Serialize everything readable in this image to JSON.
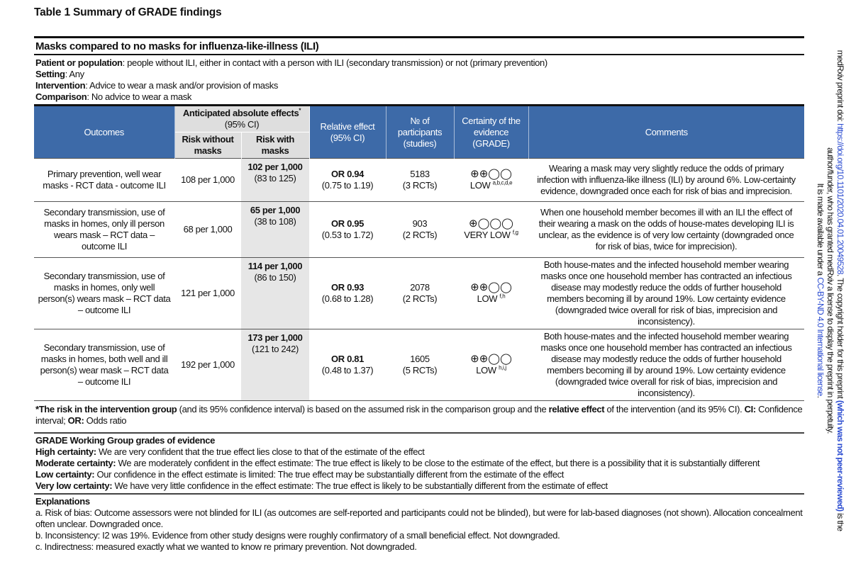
{
  "title": "Table 1 Summary of GRADE findings",
  "subtitle": "Masks compared to no masks for influenza-like-illness (ILI)",
  "meta": [
    {
      "label": "Patient or population",
      "text": ": people without ILI, either in contact with a person with ILI (secondary transmission) or not (primary prevention)"
    },
    {
      "label": "Setting",
      "text": ": Any"
    },
    {
      "label": "Intervention",
      "text": ": Advice to wear a mask and/or provision of masks"
    },
    {
      "label": "Comparison",
      "text": ": No advice to wear a mask"
    }
  ],
  "header": {
    "outcomes": "Outcomes",
    "anticipated": "Anticipated absolute effects",
    "anticipated_mark": "*",
    "anticipated_ci": "(95% CI)",
    "risk_without": "Risk without masks",
    "risk_with": "Risk with masks",
    "relative": "Relative effect (95% CI)",
    "participants": "№ of participants (studies)",
    "certainty": "Certainty of the evidence (GRADE)",
    "comments": "Comments"
  },
  "rows": [
    {
      "outcome": "Primary prevention, well wear masks - RCT data - outcome ILI",
      "risk_without": "108 per 1,000",
      "risk_with": "102 per 1,000",
      "risk_with_ci": "(83 to 125)",
      "or": "OR 0.94",
      "or_ci": "(0.75 to 1.19)",
      "n": "5183",
      "studies": "(3 RCTs)",
      "symbols": "⊕⊕◯◯",
      "grade": "LOW",
      "notes": "a,b,c,d,e",
      "comment": "Wearing a mask may very slightly reduce the odds of primary infection with influenza-like illness (ILI) by around 6%. Low-certainty evidence, downgraded once each for risk of bias and imprecision."
    },
    {
      "outcome": "Secondary transmission, use of masks in homes, only ill person wears mask – RCT data – outcome ILI",
      "risk_without": "68 per 1,000",
      "risk_with": "65 per 1,000",
      "risk_with_ci": "(38 to 108)",
      "or": "OR 0.95",
      "or_ci": "(0.53 to 1.72)",
      "n": "903",
      "studies": "(2 RCTs)",
      "symbols": "⊕◯◯◯",
      "grade": "VERY LOW",
      "notes": "f,g",
      "comment": "When one household member becomes ill with an ILI the effect of their wearing a mask on the odds of house-mates developing ILI is unclear, as the evidence is of very low certainty (downgraded once for risk of bias, twice for imprecision)."
    },
    {
      "outcome": "Secondary transmission, use of masks in homes, only well person(s) wears mask – RCT data – outcome ILI",
      "risk_without": "121 per 1,000",
      "risk_with": "114 per 1,000",
      "risk_with_ci": "(86 to 150)",
      "or": "OR 0.93",
      "or_ci": "(0.68 to 1.28)",
      "n": "2078",
      "studies": "(2 RCTs)",
      "symbols": "⊕⊕◯◯",
      "grade": "LOW",
      "notes": "f,h",
      "comment": "Both house-mates and the infected household member wearing masks once one household member has contracted an infectious disease may modestly reduce the odds of further household members becoming ill by around 19%. Low certainty evidence (downgraded twice overall for risk of bias, imprecision and inconsistency)."
    },
    {
      "outcome": "Secondary transmission, use of masks in homes, both well and ill person(s) wear mask – RCT data – outcome ILI",
      "risk_without": "192 per 1,000",
      "risk_with": "173 per 1,000",
      "risk_with_ci": "(121 to 242)",
      "or": "OR 0.81",
      "or_ci": "(0.48 to 1.37)",
      "n": "1605",
      "studies": "(5 RCTs)",
      "symbols": "⊕⊕◯◯",
      "grade": "LOW",
      "notes": "h,i,j",
      "comment": "Both house-mates and the infected household member wearing masks once one household member has contracted an infectious disease may modestly reduce the odds of further household members becoming ill by around 19%. Low certainty evidence (downgraded twice overall for risk of bias, imprecision and inconsistency)."
    }
  ],
  "footnote": {
    "b1": "*The risk in the intervention group",
    "t1": " (and its 95% confidence interval) is based on the assumed risk in the comparison group and the ",
    "b2": "relative effect",
    "t2": " of the intervention (and its 95% CI). ",
    "b3": "CI:",
    "t3": " Confidence interval; ",
    "b4": "OR:",
    "t4": " Odds ratio"
  },
  "grades": {
    "heading": "GRADE Working Group grades of evidence",
    "items": [
      {
        "label": "High certainty:",
        "text": " We are very confident that the true effect lies close to that of the estimate of the effect"
      },
      {
        "label": "Moderate certainty:",
        "text": " We are moderately confident in the effect estimate: The true effect is likely to be close to the estimate of the effect, but there is a possibility that it is substantially different"
      },
      {
        "label": "Low certainty:",
        "text": " Our confidence in the effect estimate is limited: The true effect may be substantially different from the estimate of the effect"
      },
      {
        "label": "Very low certainty:",
        "text": " We have very little confidence in the effect estimate: The true effect is likely to be substantially different from the estimate of effect"
      }
    ]
  },
  "explanations": {
    "heading": "Explanations",
    "items": [
      "a. Risk of bias: Outcome assessors were not blinded for ILI (as outcomes are self-reported and participants could not be blinded), but were for lab-based diagnoses (not shown). Allocation concealment often unclear. Downgraded once.",
      "b. Inconsistency: I2 was 19%. Evidence from other study designs were roughly confirmatory of a small beneficial effect. Not downgraded.",
      "c. Indirectness: measured exactly what we wanted to know re primary prevention. Not downgraded."
    ]
  },
  "side": {
    "l1a": "medRxiv preprint doi: ",
    "doi": "https://doi.org/10.1101/2020.04.01.20049528",
    "l1b": ". The copyright holder for this preprint ",
    "l1c": "(which was not peer-reviewed)",
    "l1d": " is the",
    "l2": "author/funder, who has granted medRxiv a license to display the preprint in perpetuity.",
    "l3a": "It is made available under a ",
    "license": "CC-BY-ND 4.0 International license",
    "l3b": "."
  },
  "colors": {
    "header_blue": "#3d6aa8",
    "subheader_grey": "#dedede",
    "highlight_grey": "#e6e6e6",
    "link_blue": "#2a4bd0"
  }
}
